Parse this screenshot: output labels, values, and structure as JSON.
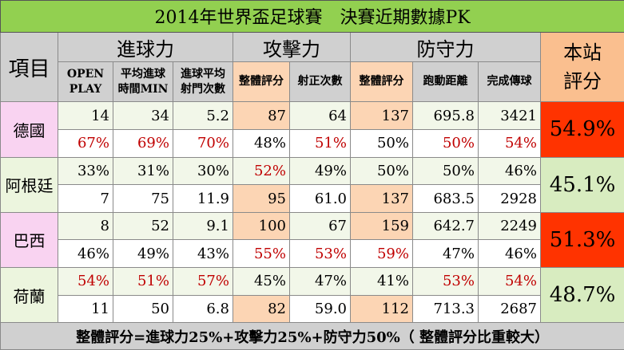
{
  "title": "2014年世界盃足球賽　決賽近期數據PK",
  "header": {
    "item": "項目",
    "attack_group": "進球力",
    "offense_group": "攻擊力",
    "defense_group": "防守力",
    "score_line1": "本站",
    "score_line2": "評分",
    "cols": [
      {
        "l1": "OPEN",
        "l2": "PLAY"
      },
      {
        "l1": "平均進球",
        "l2": "時間MIN"
      },
      {
        "l1": "進球平均",
        "l2": "射門次數"
      },
      {
        "l1": "整體評分",
        "l2": ""
      },
      {
        "l1": "射正次數",
        "l2": ""
      },
      {
        "l1": "整體評分",
        "l2": ""
      },
      {
        "l1": "跑動距離",
        "l2": ""
      },
      {
        "l1": "完成傳球",
        "l2": ""
      }
    ]
  },
  "teams": [
    {
      "name": "德國",
      "score": "54.9%",
      "row1": [
        "14",
        "34",
        "5.2",
        "87",
        "64",
        "137",
        "695.8",
        "3421"
      ],
      "row2": [
        "67%",
        "69%",
        "70%",
        "48%",
        "51%",
        "50%",
        "50%",
        "54%"
      ]
    },
    {
      "name": "阿根廷",
      "score": "45.1%",
      "row1": [
        "33%",
        "31%",
        "30%",
        "52%",
        "49%",
        "50%",
        "50%",
        "46%"
      ],
      "row2": [
        "7",
        "75",
        "11.9",
        "95",
        "61.0",
        "137",
        "683.5",
        "2928"
      ]
    },
    {
      "name": "巴西",
      "score": "51.3%",
      "row1": [
        "8",
        "52",
        "9.1",
        "100",
        "67",
        "159",
        "642.7",
        "2249"
      ],
      "row2": [
        "46%",
        "49%",
        "43%",
        "55%",
        "53%",
        "59%",
        "47%",
        "46%"
      ]
    },
    {
      "name": "荷蘭",
      "score": "48.7%",
      "row1": [
        "54%",
        "51%",
        "57%",
        "45%",
        "47%",
        "41%",
        "53%",
        "54%"
      ],
      "row2": [
        "11",
        "50",
        "6.8",
        "82",
        "59.0",
        "112",
        "713.3",
        "2687"
      ]
    }
  ],
  "footer": "整體評分=進球力25%+攻擊力25%+防守力50%（ 整體評分比重較大）",
  "colors": {
    "title_bg": "#92d050",
    "highlight_red": "#ff3300",
    "highlight_green": "#d8ecc0",
    "peach": "#fcd5b4",
    "red_text": "#c00000"
  }
}
